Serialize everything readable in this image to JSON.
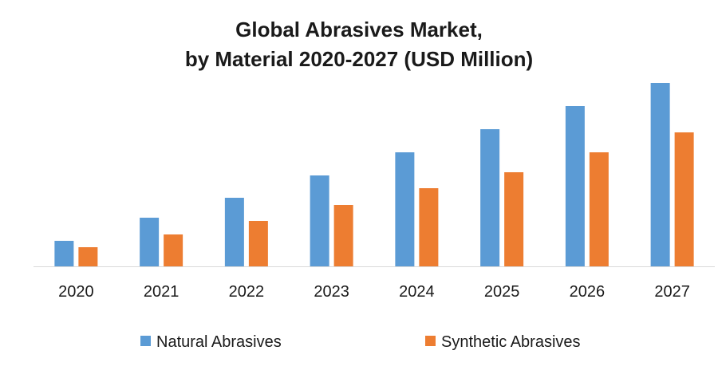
{
  "chart_data": {
    "type": "bar",
    "title": [
      "Global Abrasives Market,",
      "by Material 2020-2027 (USD Million)"
    ],
    "xlabel": "",
    "ylabel": "",
    "categories": [
      "2020",
      "2021",
      "2022",
      "2023",
      "2024",
      "2025",
      "2026",
      "2027"
    ],
    "series": [
      {
        "name": "Natural Abrasives",
        "color": "#5b9bd5",
        "values": [
          32,
          61,
          86,
          114,
          143,
          172,
          201,
          230
        ]
      },
      {
        "name": "Synthetic Abrasives",
        "color": "#ed7d31",
        "values": [
          24,
          40,
          57,
          77,
          98,
          118,
          143,
          168
        ]
      }
    ],
    "ylim": [
      0,
      235
    ],
    "y_axis_visible": false,
    "grid": false,
    "legend_position": "bottom"
  }
}
